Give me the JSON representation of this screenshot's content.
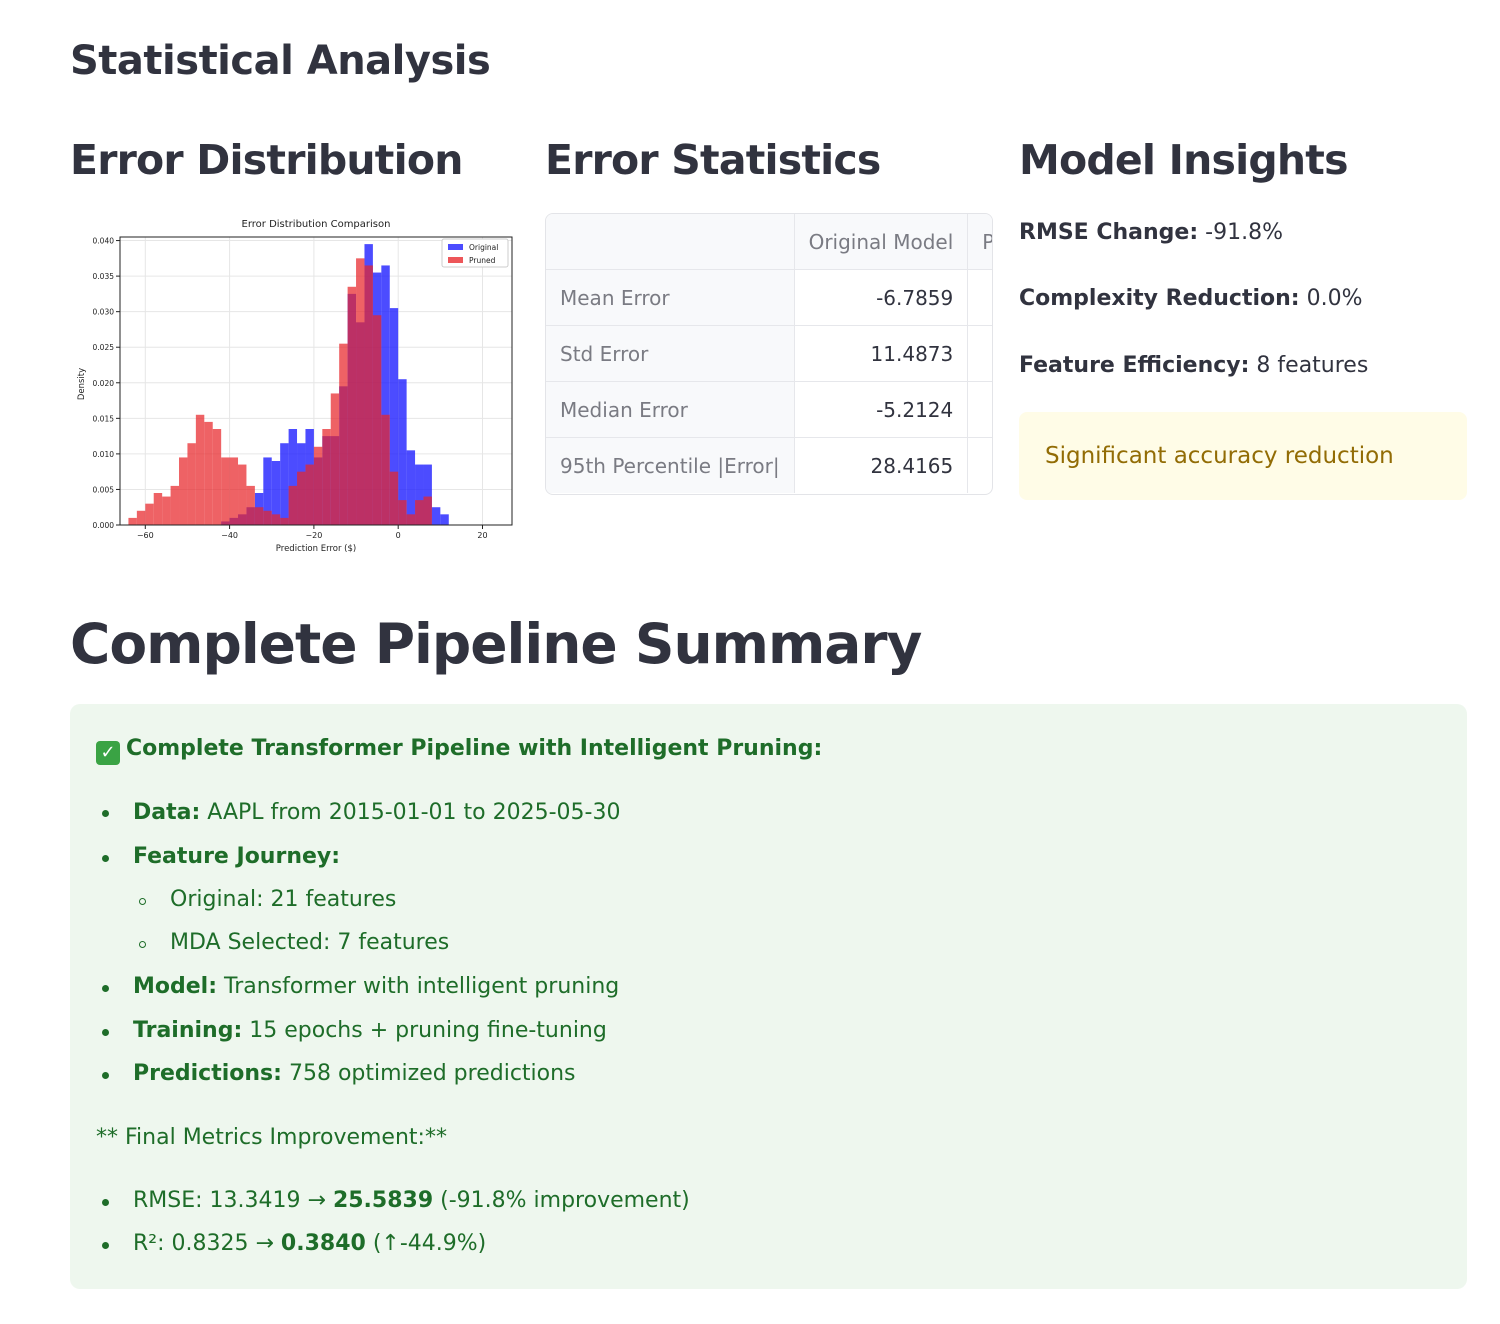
{
  "header": {
    "title": "Statistical Analysis"
  },
  "columns": {
    "error_distribution": {
      "title": "Error Distribution"
    },
    "error_statistics": {
      "title": "Error Statistics",
      "table": {
        "headers": [
          "",
          "Original Model",
          "Pruned Model"
        ],
        "rows": [
          {
            "label": "Mean Error",
            "original": "-6.7859"
          },
          {
            "label": "Std Error",
            "original": "11.4873"
          },
          {
            "label": "Median Error",
            "original": "-5.2124"
          },
          {
            "label": "95th Percentile |Error|",
            "original": "28.4165"
          }
        ]
      }
    },
    "model_insights": {
      "title": "Model Insights",
      "items": [
        {
          "label": "RMSE Change:",
          "value": "-91.8%"
        },
        {
          "label": "Complexity Reduction:",
          "value": "0.0%"
        },
        {
          "label": "Feature Efficiency:",
          "value": "8 features"
        }
      ],
      "warning": "Significant accuracy reduction"
    }
  },
  "chart_data": {
    "type": "bar",
    "title": "Error Distribution Comparison",
    "xlabel": "Prediction Error ($)",
    "ylabel": "Density",
    "xlim": [
      -66,
      27
    ],
    "ylim": [
      0,
      0.0405
    ],
    "xticks": [
      -60,
      -40,
      -20,
      0,
      20
    ],
    "xtick_labels": [
      "−60",
      "−40",
      "−20",
      "0",
      "20"
    ],
    "yticks": [
      0,
      0.005,
      0.01,
      0.015,
      0.02,
      0.025,
      0.03,
      0.035,
      0.04
    ],
    "ytick_labels": [
      "0.000",
      "0.005",
      "0.010",
      "0.015",
      "0.020",
      "0.025",
      "0.030",
      "0.035",
      "0.040"
    ],
    "grid": true,
    "legend": "top-right",
    "series": [
      {
        "name": "Original",
        "color": "#1a1aff",
        "bin_start": -42,
        "bin_width": 2,
        "values": [
          0.0005,
          0.001,
          0.0015,
          0.0025,
          0.0045,
          0.0095,
          0.009,
          0.0115,
          0.0135,
          0.0115,
          0.0135,
          0.0095,
          0.0125,
          0.0125,
          0.0195,
          0.0325,
          0.0285,
          0.0395,
          0.0355,
          0.0365,
          0.0305,
          0.0205,
          0.0105,
          0.0085,
          0.0085,
          0.0025,
          0.0015
        ]
      },
      {
        "name": "Pruned",
        "color": "#e8262a",
        "bin_start": -64,
        "bin_width": 2,
        "values": [
          0.001,
          0.002,
          0.003,
          0.0045,
          0.004,
          0.0055,
          0.0095,
          0.0115,
          0.0155,
          0.0145,
          0.0135,
          0.0095,
          0.0095,
          0.0085,
          0.0055,
          0.0025,
          0.002,
          0.0015,
          0.001,
          0.0055,
          0.0075,
          0.0085,
          0.011,
          0.0135,
          0.0185,
          0.0255,
          0.0335,
          0.0375,
          0.0365,
          0.0295,
          0.0155,
          0.0075,
          0.0035,
          0.0015,
          0.0035,
          0.004
        ]
      }
    ]
  },
  "summary": {
    "title": "Complete Pipeline Summary",
    "heading": "Complete Transformer Pipeline with Intelligent Pruning:",
    "data_label": "Data:",
    "data_value": "AAPL from 2015-01-01 to 2025-05-30",
    "feature_journey_label": "Feature Journey:",
    "feature_original": "Original: 21 features",
    "feature_mda": "MDA Selected: 7 features",
    "model_label": "Model:",
    "model_value": "Transformer with intelligent pruning",
    "training_label": "Training:",
    "training_value": "15 epochs + pruning fine-tuning",
    "predictions_label": "Predictions:",
    "predictions_value": "758 optimized predictions",
    "final_metrics": "** Final Metrics Improvement:**",
    "rmse_prefix": "RMSE: 13.3419 → ",
    "rmse_bold": "25.5839",
    "rmse_suffix": " (-91.8% improvement)",
    "r2_prefix": "R²: 0.8325 → ",
    "r2_bold": "0.3840",
    "r2_suffix": " (↑-44.9%)"
  }
}
